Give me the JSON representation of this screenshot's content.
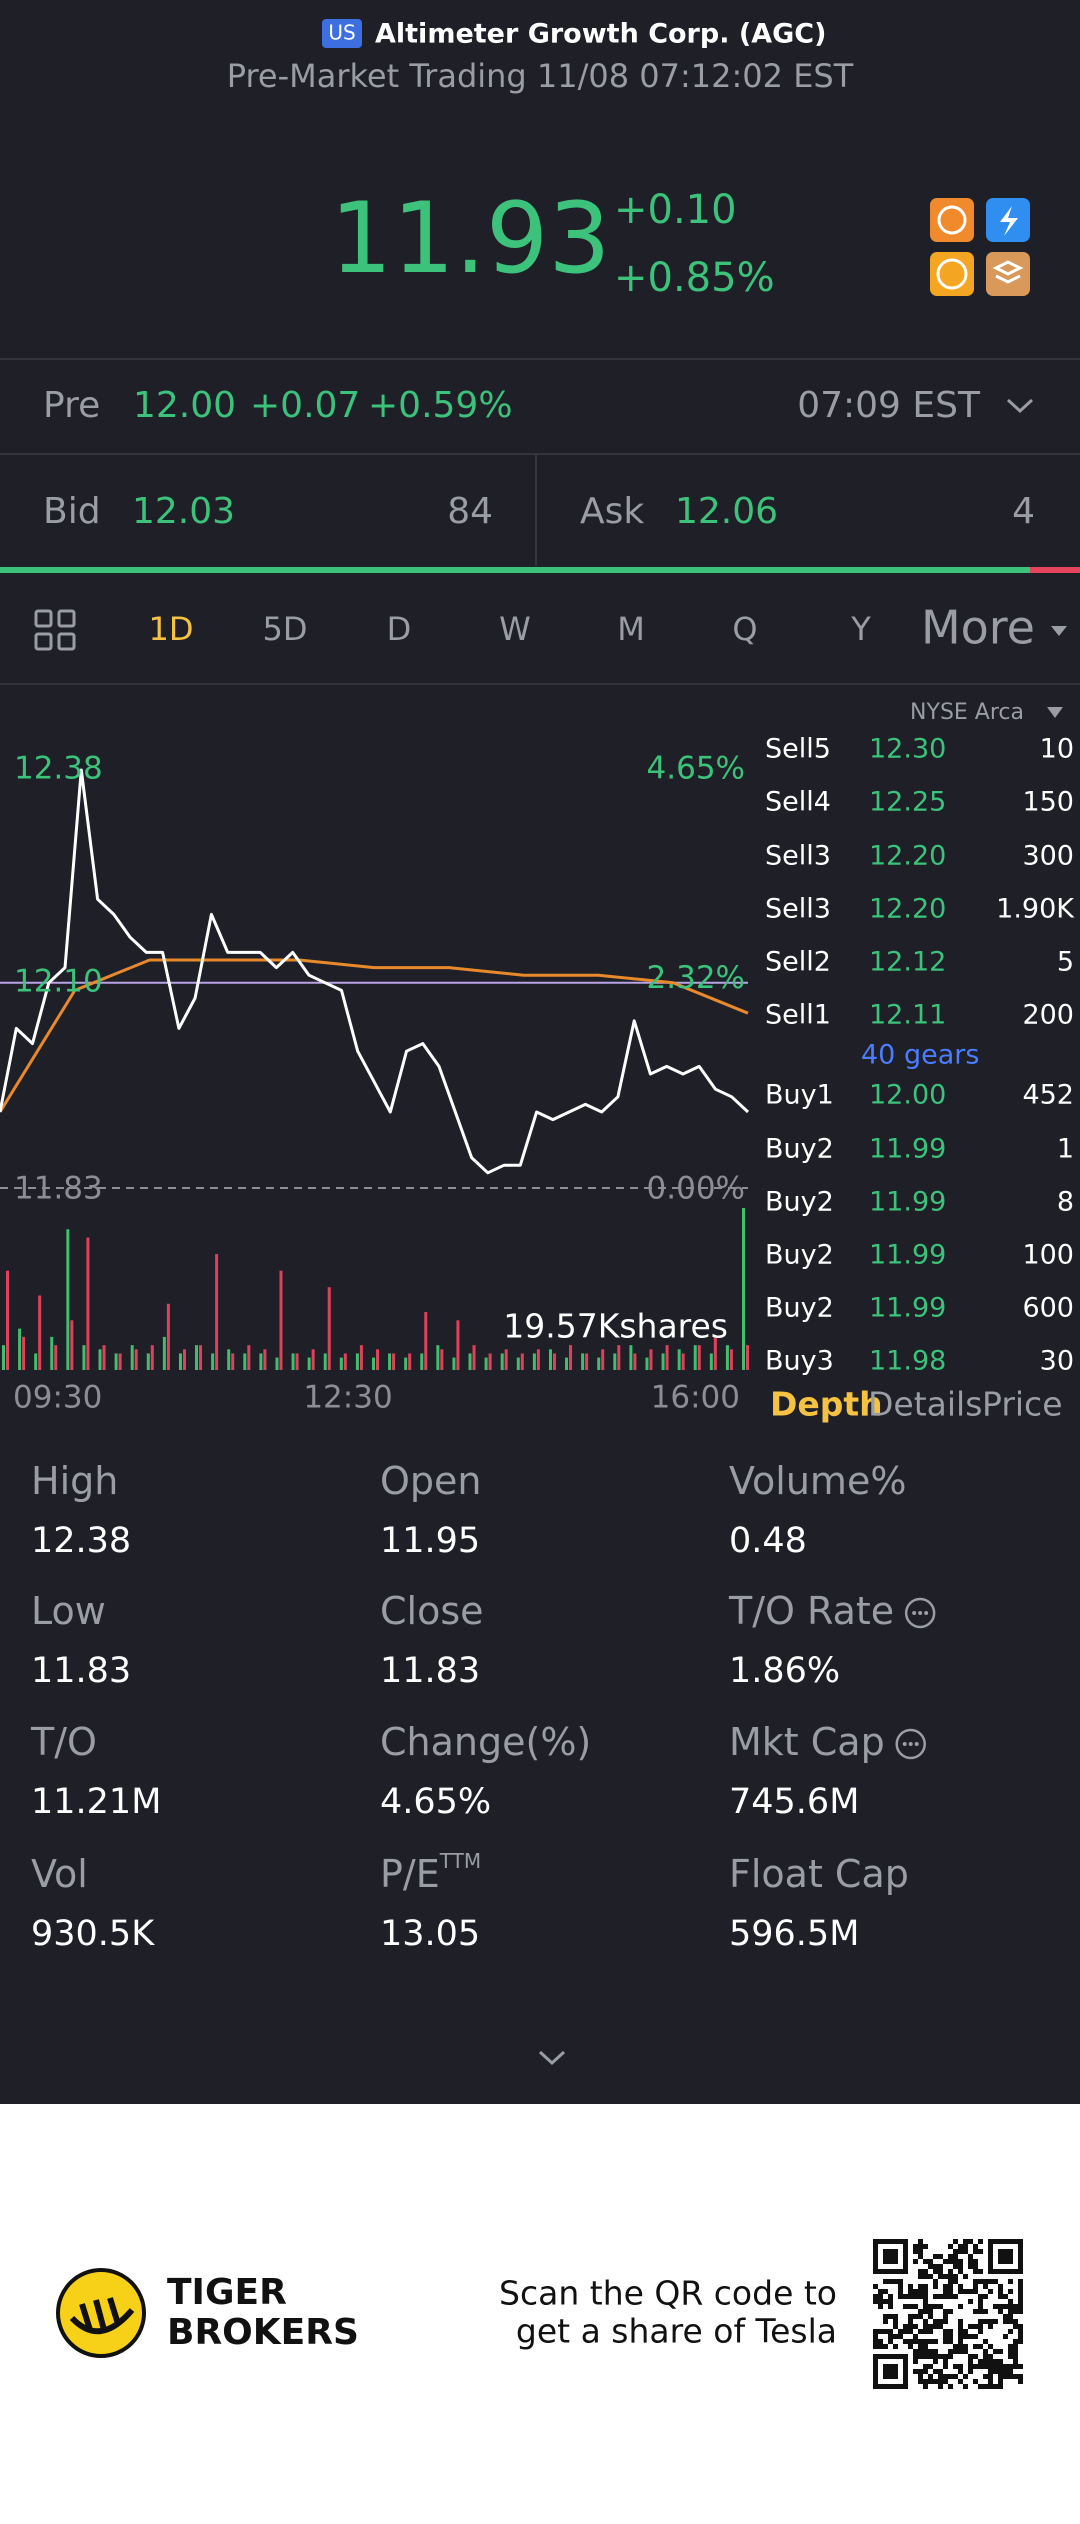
{
  "header": {
    "badge": "US",
    "title": "Altimeter Growth Corp. (AGC)",
    "subtitle": "Pre-Market Trading 11/08 07:12:02 EST"
  },
  "quote": {
    "price": "11.93",
    "change": "+0.10",
    "change_pct": "+0.85%"
  },
  "pre": {
    "label": "Pre",
    "price": "12.00",
    "change": "+0.07",
    "change_pct": "+0.59%",
    "time": "07:09 EST"
  },
  "bid": {
    "label": "Bid",
    "price": "12.03",
    "size": "84"
  },
  "ask": {
    "label": "Ask",
    "price": "12.06",
    "size": "4"
  },
  "tabs": {
    "items": [
      "1D",
      "5D",
      "D",
      "W",
      "M",
      "Q",
      "Y",
      "More"
    ],
    "active": 0
  },
  "chart_data": {
    "type": "line",
    "ylim": [
      11.83,
      12.38
    ],
    "yticks": [
      11.83,
      {
        "value": 12.1,
        "label": "12.10"
      },
      12.38
    ],
    "y2lim": [
      0,
      4.65
    ],
    "y2ticks": [
      {
        "value": 0,
        "label": "0.00%"
      },
      {
        "value": 2.32,
        "label": "2.32%"
      },
      {
        "value": 4.65,
        "label": "4.65%"
      }
    ],
    "xticks": [
      "09:30",
      "12:30",
      "16:00"
    ],
    "series": [
      {
        "color": "#ffffff",
        "values": [
          11.93,
          12.04,
          12.02,
          12.1,
          12.12,
          12.38,
          12.21,
          12.19,
          12.16,
          12.14,
          12.14,
          12.04,
          12.08,
          12.19,
          12.14,
          12.14,
          12.14,
          12.12,
          12.14,
          12.11,
          12.1,
          12.09,
          12.01,
          11.97,
          11.93,
          12.01,
          12.02,
          11.99,
          11.93,
          11.87,
          11.85,
          11.86,
          11.86,
          11.93,
          11.92,
          11.93,
          11.94,
          11.93,
          11.95,
          12.05,
          11.98,
          11.99,
          11.98,
          11.99,
          11.96,
          11.95,
          11.93
        ]
      },
      {
        "color": "#e8892b",
        "values": [
          11.93,
          12.09,
          12.13,
          12.13,
          12.13,
          12.12,
          12.12,
          12.11,
          12.11,
          12.1,
          12.06
        ]
      }
    ],
    "volume": {
      "max": {
        "value": 19570,
        "label": "19.57Kshares"
      },
      "up": {
        "color": "#3fbf6f",
        "values": [
          3000,
          5000,
          2000,
          4000,
          17000,
          3000,
          2500,
          2000,
          3000,
          2000,
          4000,
          2000,
          3000,
          2000,
          2500,
          2000,
          2000,
          1500,
          2000,
          1500,
          2000,
          1500,
          2000,
          1500,
          2000,
          1500,
          2000,
          3000,
          1500,
          2000,
          1500,
          2000,
          1500,
          2000,
          2500,
          1500,
          2000,
          1500,
          2000,
          3000,
          1500,
          2000,
          2500,
          3000,
          2000,
          3000,
          19570
        ]
      },
      "down": {
        "color": "#e0415a",
        "values": [
          12000,
          4000,
          9000,
          3000,
          6000,
          16000,
          3000,
          2000,
          2500,
          3000,
          8000,
          2500,
          3000,
          14000,
          2000,
          3000,
          2500,
          12000,
          2000,
          2500,
          10000,
          2000,
          3000,
          2500,
          2000,
          2000,
          7000,
          2500,
          6000,
          3000,
          2000,
          2500,
          2000,
          2500,
          2000,
          3000,
          2000,
          2500,
          3000,
          2000,
          2500,
          3000,
          2000,
          3000,
          4000,
          2500,
          3000
        ]
      }
    }
  },
  "order_book": {
    "exchange": "NYSE Arca",
    "gears": "40 gears",
    "sell": [
      [
        "Sell5",
        "12.30",
        "10"
      ],
      [
        "Sell4",
        "12.25",
        "150"
      ],
      [
        "Sell3",
        "12.20",
        "300"
      ],
      [
        "Sell3",
        "12.20",
        "1.90K"
      ],
      [
        "Sell2",
        "12.12",
        "5"
      ],
      [
        "Sell1",
        "12.11",
        "200"
      ]
    ],
    "buy": [
      [
        "Buy1",
        "12.00",
        "452"
      ],
      [
        "Buy2",
        "11.99",
        "1"
      ],
      [
        "Buy2",
        "11.99",
        "8"
      ],
      [
        "Buy2",
        "11.99",
        "100"
      ],
      [
        "Buy2",
        "11.99",
        "600"
      ],
      [
        "Buy3",
        "11.98",
        "30"
      ]
    ],
    "tabs": [
      "Depth",
      "Details",
      "Price"
    ]
  },
  "stats": [
    {
      "label": "High",
      "value": "12.38"
    },
    {
      "label": "Open",
      "value": "11.95"
    },
    {
      "label": "Volume%",
      "value": "0.48"
    },
    {
      "label": "Low",
      "value": "11.83"
    },
    {
      "label": "Close",
      "value": "11.83"
    },
    {
      "label": "T/O Rate",
      "value": "1.86%",
      "info": true
    },
    {
      "label": "T/O",
      "value": "11.21M"
    },
    {
      "label": "Change(%)",
      "value": "4.65%"
    },
    {
      "label": "Mkt Cap",
      "value": "745.6M",
      "info": true
    },
    {
      "label": "Vol",
      "value": "930.5K"
    },
    {
      "label": "P/E",
      "sup": "TTM",
      "value": "13.05"
    },
    {
      "label": "Float Cap",
      "value": "596.5M"
    }
  ],
  "footer": {
    "brand": [
      "TIGER",
      "BROKERS"
    ],
    "caption": [
      "Scan the QR code to",
      "get a share of Tesla"
    ]
  }
}
